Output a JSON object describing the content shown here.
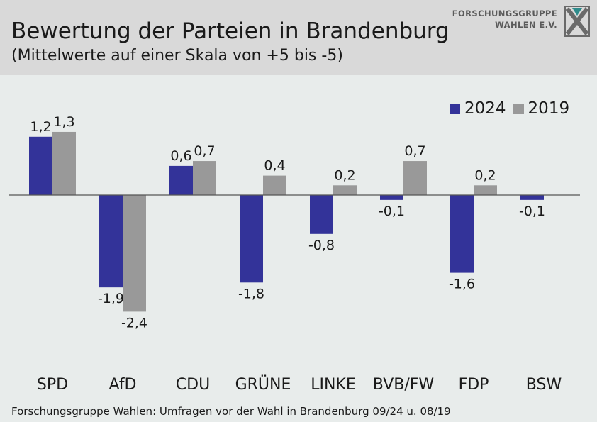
{
  "header": {
    "title": "Bewertung der Parteien in Brandenburg",
    "subtitle": "(Mittelwerte auf einer Skala von +5 bis -5)"
  },
  "logo": {
    "line1": "FORSCHUNGSGRUPPE",
    "line2": "WAHLEN E.V."
  },
  "source": "Forschungsgruppe Wahlen: Umfragen vor der Wahl in Brandenburg 09/24 u. 08/19",
  "colors": {
    "series_2024": "#333399",
    "series_2019": "#999999",
    "header_bg": "#d9d9d9",
    "plot_bg": "#e8eceb"
  },
  "chart_data": {
    "type": "bar",
    "title": "Bewertung der Parteien in Brandenburg",
    "subtitle": "(Mittelwerte auf einer Skala von +5 bis -5)",
    "categories": [
      "SPD",
      "AfD",
      "CDU",
      "GRÜNE",
      "LINKE",
      "BVB/FW",
      "FDP",
      "BSW"
    ],
    "series": [
      {
        "name": "2024",
        "values": [
          1.2,
          -1.9,
          0.6,
          -1.8,
          -0.8,
          -0.1,
          -1.6,
          -0.1
        ],
        "labels": [
          "1,2",
          "-1,9",
          "0,6",
          "-1,8",
          "-0,8",
          "-0,1",
          "-1,6",
          "-0,1"
        ]
      },
      {
        "name": "2019",
        "values": [
          1.3,
          -2.4,
          0.7,
          0.4,
          0.2,
          0.7,
          0.2,
          null
        ],
        "labels": [
          "1,3",
          "-2,4",
          "0,7",
          "0,4",
          "0,2",
          "0,7",
          "0,2",
          null
        ]
      }
    ],
    "legend_position": "top-right",
    "grid": false,
    "xlabel": "",
    "ylabel": ""
  }
}
